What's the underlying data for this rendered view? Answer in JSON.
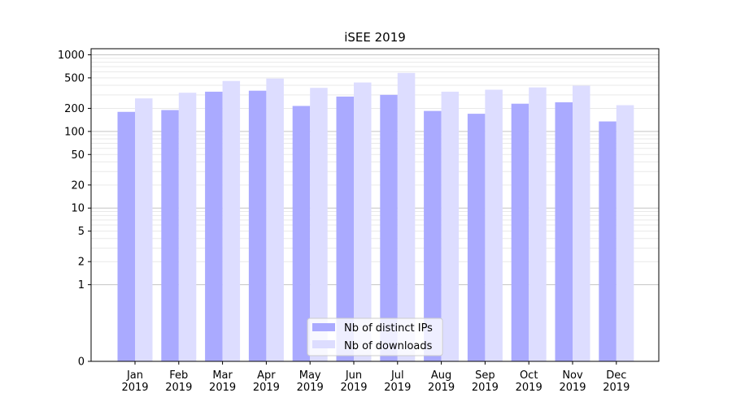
{
  "chart_data": {
    "type": "bar",
    "title": "iSEE 2019",
    "xlabel": "",
    "ylabel": "",
    "yscale": "symlog",
    "ylim": [
      0,
      1200
    ],
    "yticks": [
      0,
      1,
      2,
      5,
      10,
      20,
      50,
      100,
      200,
      500,
      1000
    ],
    "categories": [
      "Jan\n2019",
      "Feb\n2019",
      "Mar\n2019",
      "Apr\n2019",
      "May\n2019",
      "Jun\n2019",
      "Jul\n2019",
      "Aug\n2019",
      "Sep\n2019",
      "Oct\n2019",
      "Nov\n2019",
      "Dec\n2019"
    ],
    "series": [
      {
        "name": "Nb of distinct IPs",
        "color": "#aaaaff",
        "values": [
          180,
          190,
          330,
          340,
          215,
          285,
          300,
          185,
          170,
          230,
          240,
          135
        ]
      },
      {
        "name": "Nb of downloads",
        "color": "#ddddff",
        "values": [
          270,
          320,
          455,
          490,
          370,
          435,
          580,
          330,
          350,
          375,
          395,
          220
        ]
      }
    ],
    "grid": true,
    "legend_position": "bottom-center"
  }
}
